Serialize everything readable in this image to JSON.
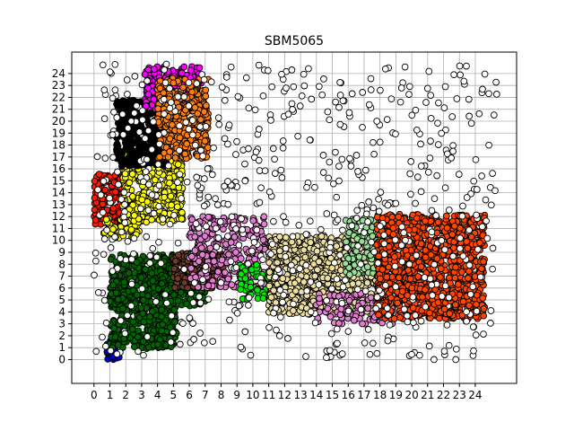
{
  "chart_data": {
    "type": "scatter",
    "title": "SBM5065",
    "xlabel": "",
    "ylabel": "",
    "xlim": [
      -1.4,
      26.6
    ],
    "ylim": [
      -2.0,
      25.8
    ],
    "x_ticks": [
      0,
      1,
      2,
      3,
      4,
      5,
      6,
      7,
      8,
      9,
      10,
      11,
      12,
      13,
      14,
      15,
      16,
      17,
      18,
      19,
      20,
      21,
      22,
      23,
      24
    ],
    "y_ticks": [
      0,
      1,
      2,
      3,
      4,
      5,
      6,
      7,
      8,
      9,
      10,
      11,
      12,
      13,
      14,
      15,
      16,
      17,
      18,
      19,
      20,
      21,
      22,
      23,
      24
    ],
    "grid": true,
    "legend": "none",
    "marker": {
      "shape": "circle",
      "edgecolor": "#000000"
    },
    "clusters": [
      {
        "color": "#0000cc",
        "x_range": [
          0.7,
          1.6
        ],
        "y_range": [
          0.0,
          1.6
        ],
        "density": 2
      },
      {
        "color": "#006400",
        "x_range": [
          1.0,
          5.2
        ],
        "y_range": [
          0.9,
          8.8
        ],
        "density": 2
      },
      {
        "color": "#006400",
        "x_range": [
          4.0,
          7.0
        ],
        "y_range": [
          4.5,
          6.5
        ],
        "density": 2
      },
      {
        "color": "#ff1a00",
        "x_range": [
          0.0,
          1.8
        ],
        "y_range": [
          11.3,
          15.6
        ],
        "density": 2
      },
      {
        "color": "#ffff00",
        "x_range": [
          0.6,
          3.0
        ],
        "y_range": [
          10.2,
          11.8
        ],
        "density": 2
      },
      {
        "color": "#ffff00",
        "x_range": [
          1.8,
          5.6
        ],
        "y_range": [
          11.5,
          17.5
        ],
        "density": 2
      },
      {
        "color": "#000000",
        "x_range": [
          1.4,
          4.6
        ],
        "y_range": [
          16.2,
          21.8
        ],
        "density": 2
      },
      {
        "color": "#ff00ff",
        "x_range": [
          3.2,
          6.8
        ],
        "y_range": [
          20.8,
          24.6
        ],
        "density": 2
      },
      {
        "color": "#ff7f0e",
        "x_range": [
          4.0,
          7.2
        ],
        "y_range": [
          16.8,
          23.6
        ],
        "density": 2
      },
      {
        "color": "#6b3a2a",
        "x_range": [
          5.0,
          8.2
        ],
        "y_range": [
          6.0,
          9.0
        ],
        "density": 2
      },
      {
        "color": "#e27fd0",
        "x_range": [
          6.0,
          10.8
        ],
        "y_range": [
          6.0,
          12.0
        ],
        "density": 1
      },
      {
        "color": "#00ee00",
        "x_range": [
          9.2,
          11.8
        ],
        "y_range": [
          5.0,
          8.0
        ],
        "density": 1
      },
      {
        "color": "#efe0a0",
        "x_range": [
          11.0,
          18.2
        ],
        "y_range": [
          3.8,
          10.4
        ],
        "density": 2
      },
      {
        "color": "#e27fd0",
        "x_range": [
          14.0,
          18.8
        ],
        "y_range": [
          3.0,
          5.6
        ],
        "density": 1
      },
      {
        "color": "#98e098",
        "x_range": [
          15.8,
          18.4
        ],
        "y_range": [
          7.0,
          12.0
        ],
        "density": 1
      },
      {
        "color": "#ff4500",
        "x_range": [
          17.8,
          24.6
        ],
        "y_range": [
          3.4,
          12.2
        ],
        "density": 2
      },
      {
        "color": "#ffffff",
        "x_range": [
          0.0,
          25.5
        ],
        "y_range": [
          0.0,
          24.8
        ],
        "density": 1
      }
    ]
  }
}
